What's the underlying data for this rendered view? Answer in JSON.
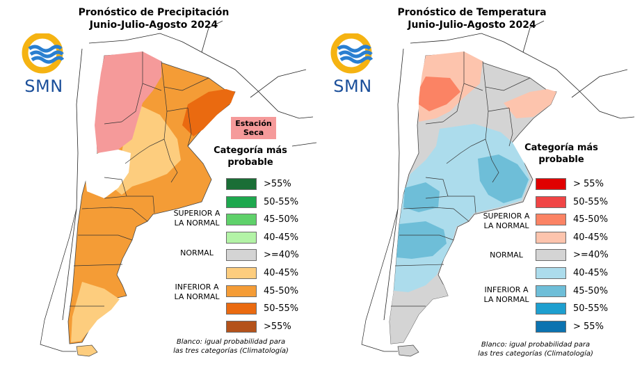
{
  "brand": {
    "logo_text": "SMN"
  },
  "precipitation": {
    "title_line1": "Pronóstico de Precipitación",
    "title_line2": "Junio-Julio-Agosto 2024",
    "legend_title_line1": "Categoría más",
    "legend_title_line2": "probable",
    "dry_season_line1": "Estación",
    "dry_season_line2": "Seca",
    "dry_season_color": "#f59a9a",
    "legend": [
      {
        "label": ">55%",
        "color": "#1a6e36"
      },
      {
        "label": "50-55%",
        "color": "#1ea84e"
      },
      {
        "label": "45-50%",
        "color": "#5fd16a"
      },
      {
        "label": "40-45%",
        "color": "#b3f3a6"
      },
      {
        "label": ">=40%",
        "color": "#d4d4d4"
      },
      {
        "label": "40-45%",
        "color": "#fdcd7e"
      },
      {
        "label": "45-50%",
        "color": "#f49c36"
      },
      {
        "label": "50-55%",
        "color": "#ea6a10"
      },
      {
        "label": ">55%",
        "color": "#b4521b"
      }
    ],
    "group_superior_line1": "SUPERIOR A",
    "group_superior_line2": "LA NORMAL",
    "group_normal": "NORMAL",
    "group_inferior_line1": "INFERIOR A",
    "group_inferior_line2": "LA NORMAL",
    "note_line1": "Blanco: igual probabilidad para",
    "note_line2": "las tres categorías (Climatología)"
  },
  "temperature": {
    "title_line1": "Pronóstico de Temperatura",
    "title_line2": "Junio-Julio-Agosto 2024",
    "legend_title_line1": "Categoría más",
    "legend_title_line2": "probable",
    "legend": [
      {
        "label": "> 55%",
        "color": "#e00000"
      },
      {
        "label": "50-55%",
        "color": "#f04545"
      },
      {
        "label": "45-50%",
        "color": "#fb8364"
      },
      {
        "label": "40-45%",
        "color": "#fdc4ad"
      },
      {
        "label": ">=40%",
        "color": "#d4d4d4"
      },
      {
        "label": "40-45%",
        "color": "#acdcec"
      },
      {
        "label": "45-50%",
        "color": "#6ebed8"
      },
      {
        "label": "50-55%",
        "color": "#1e9fcf"
      },
      {
        "label": "> 55%",
        "color": "#0c73b0"
      }
    ],
    "group_superior_line1": "SUPERIOR A",
    "group_superior_line2": "LA NORMAL",
    "group_normal": "NORMAL",
    "group_inferior_line1": "INFERIOR A",
    "group_inferior_line2": "LA NORMAL",
    "note_line1": "Blanco: igual probabilidad para",
    "note_line2": "las tres categorías (Climatología)"
  }
}
